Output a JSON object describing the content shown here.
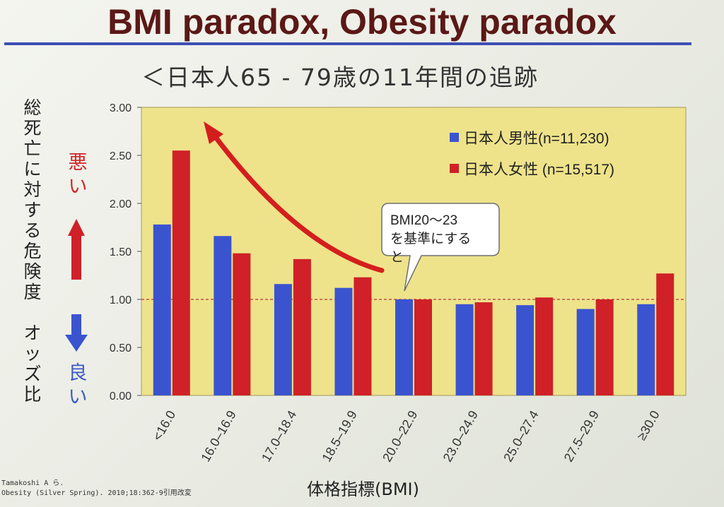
{
  "slide": {
    "title": "BMI paradox, Obesity paradox",
    "subtitle": "＜日本人65 - 79歳の11年間の追跡",
    "ylabel_lines": [
      "総",
      "死",
      "亡",
      "に",
      "対",
      "す",
      "る",
      "危",
      "険",
      "度",
      " ",
      "オ",
      "ッ",
      "ズ",
      "比"
    ],
    "bad_lines": [
      "悪",
      "い"
    ],
    "good_lines": [
      "良",
      "い"
    ],
    "callout_lines": [
      "BMI20～23",
      "を基準にする",
      "と"
    ],
    "citation_lines": [
      "Tamakoshi A ら.",
      "Obesity (Silver Spring). 2010;18:362-9引用改変"
    ],
    "x_title": "体格指標(BMI)"
  },
  "colors": {
    "male": "#3a54d0",
    "female": "#cf2127",
    "plot_bg": "#eee38a",
    "reference_line": "#c0504d",
    "arrow": "#d41e1e"
  },
  "chart_data": {
    "type": "bar",
    "title": "",
    "xlabel": "体格指標(BMI)",
    "ylabel": "総死亡に対する危険度 オッズ比",
    "categories": [
      "<16.0",
      "16.0–16.9",
      "17.0–18.4",
      "18.5–19.9",
      "20.0–22.9",
      "23.0–24.9",
      "25.0–27.4",
      "27.5–29.9",
      "≥30.0"
    ],
    "series": [
      {
        "name": "日本人男性(n=11,230)",
        "values": [
          1.78,
          1.66,
          1.16,
          1.12,
          1.0,
          0.95,
          0.94,
          0.9,
          0.95
        ]
      },
      {
        "name": "日本人女性 (n=15,517)",
        "values": [
          2.55,
          1.48,
          1.42,
          1.23,
          1.0,
          0.97,
          1.02,
          1.0,
          1.27
        ]
      }
    ],
    "yticks": [
      "0.00",
      "0.50",
      "1.00",
      "1.50",
      "2.00",
      "2.50",
      "3.00"
    ],
    "ylim": [
      0,
      3.0
    ],
    "reference_value": 1.0,
    "legend_position": "top-right",
    "grid": false
  }
}
